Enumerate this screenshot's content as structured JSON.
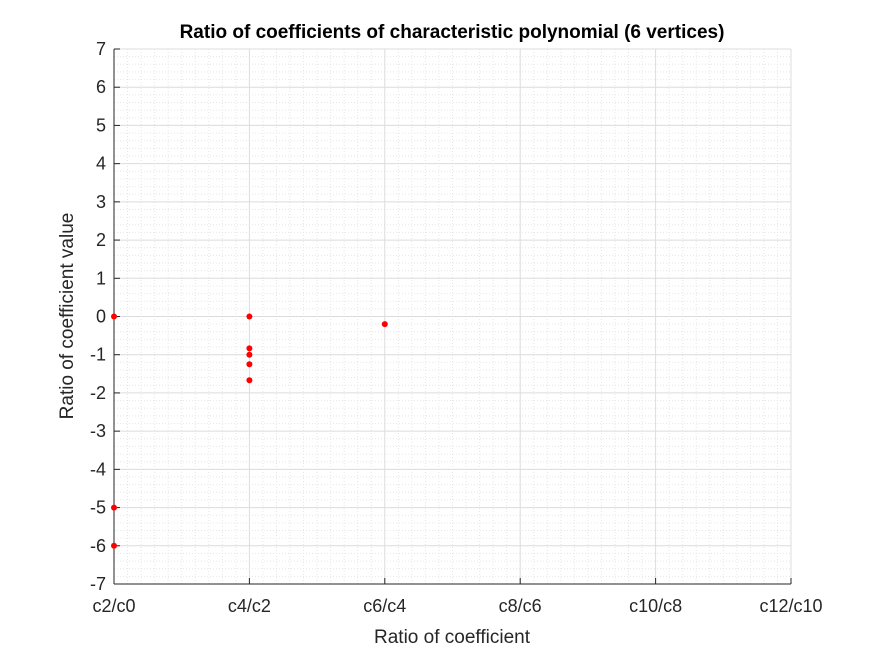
{
  "chart_data": {
    "type": "scatter",
    "title": "Ratio of coefficients of characteristic polynomial  (6 vertices)",
    "xlabel": "Ratio of coefficient",
    "ylabel": "Ratio of coefficient value",
    "x_tick_labels": [
      "c2/c0",
      "c4/c2",
      "c6/c4",
      "c8/c6",
      "c10/c8",
      "c12/c10"
    ],
    "xlim": [
      1,
      6
    ],
    "ylim": [
      -7,
      7
    ],
    "y_ticks": [
      -7,
      -6,
      -5,
      -4,
      -3,
      -2,
      -1,
      0,
      1,
      2,
      3,
      4,
      5,
      6,
      7
    ],
    "grid": "major and minor",
    "marker_color": "#ff0000",
    "series": [
      {
        "points": [
          {
            "x": "c2/c0",
            "y": 0
          },
          {
            "x": "c2/c0",
            "y": -5
          },
          {
            "x": "c2/c0",
            "y": -6
          },
          {
            "x": "c4/c2",
            "y": 0
          },
          {
            "x": "c4/c2",
            "y": -0.833
          },
          {
            "x": "c4/c2",
            "y": -1
          },
          {
            "x": "c4/c2",
            "y": -1.25
          },
          {
            "x": "c4/c2",
            "y": -1.667
          },
          {
            "x": "c6/c4",
            "y": -0.2
          }
        ]
      }
    ]
  }
}
